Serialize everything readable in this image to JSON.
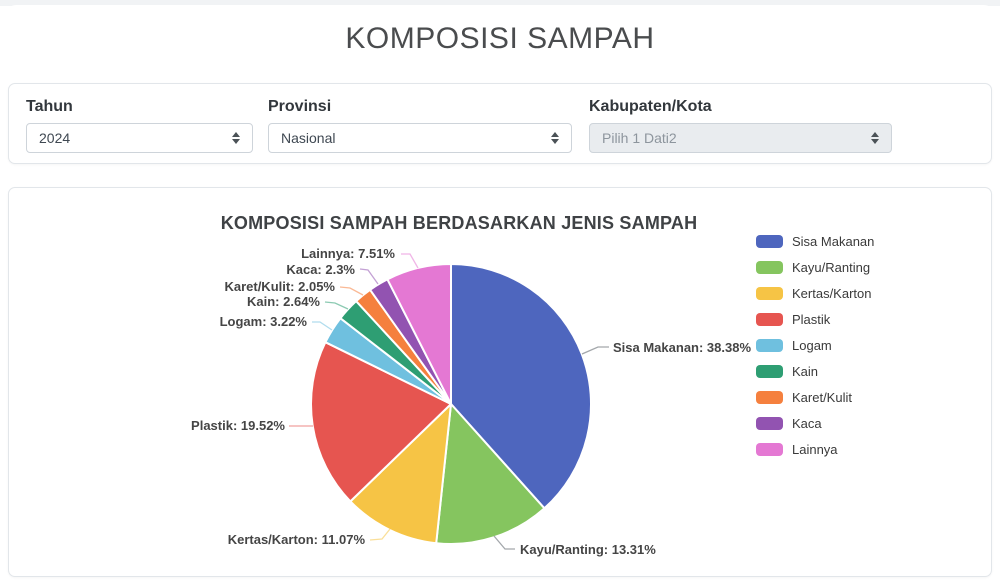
{
  "page": {
    "title": "KOMPOSISI SAMPAH"
  },
  "filters": {
    "tahun": {
      "label": "Tahun",
      "value": "2024"
    },
    "provinsi": {
      "label": "Provinsi",
      "value": "Nasional"
    },
    "kabupaten": {
      "label": "Kabupaten/Kota",
      "value": "Pilih 1 Dati2",
      "disabled": true
    }
  },
  "chart_data": {
    "type": "pie",
    "title": "KOMPOSISI SAMPAH BERDASARKAN JENIS SAMPAH",
    "unit": "%",
    "legend_position": "right",
    "start_angle_deg": 0,
    "direction": "clockwise",
    "series": [
      {
        "name": "Sisa Makanan",
        "value": 38.38,
        "color": "#4E66BE"
      },
      {
        "name": "Kayu/Ranting",
        "value": 13.31,
        "color": "#85C55F"
      },
      {
        "name": "Kertas/Karton",
        "value": 11.07,
        "color": "#F6C445"
      },
      {
        "name": "Plastik",
        "value": 19.52,
        "color": "#E65550"
      },
      {
        "name": "Logam",
        "value": 3.22,
        "color": "#6FC0DF"
      },
      {
        "name": "Kain",
        "value": 2.64,
        "color": "#2E9E73"
      },
      {
        "name": "Karet/Kulit",
        "value": 2.05,
        "color": "#F5803E"
      },
      {
        "name": "Kaca",
        "value": 2.3,
        "color": "#9253B1"
      },
      {
        "name": "Lainnya",
        "value": 7.51,
        "color": "#E478D3"
      }
    ]
  }
}
